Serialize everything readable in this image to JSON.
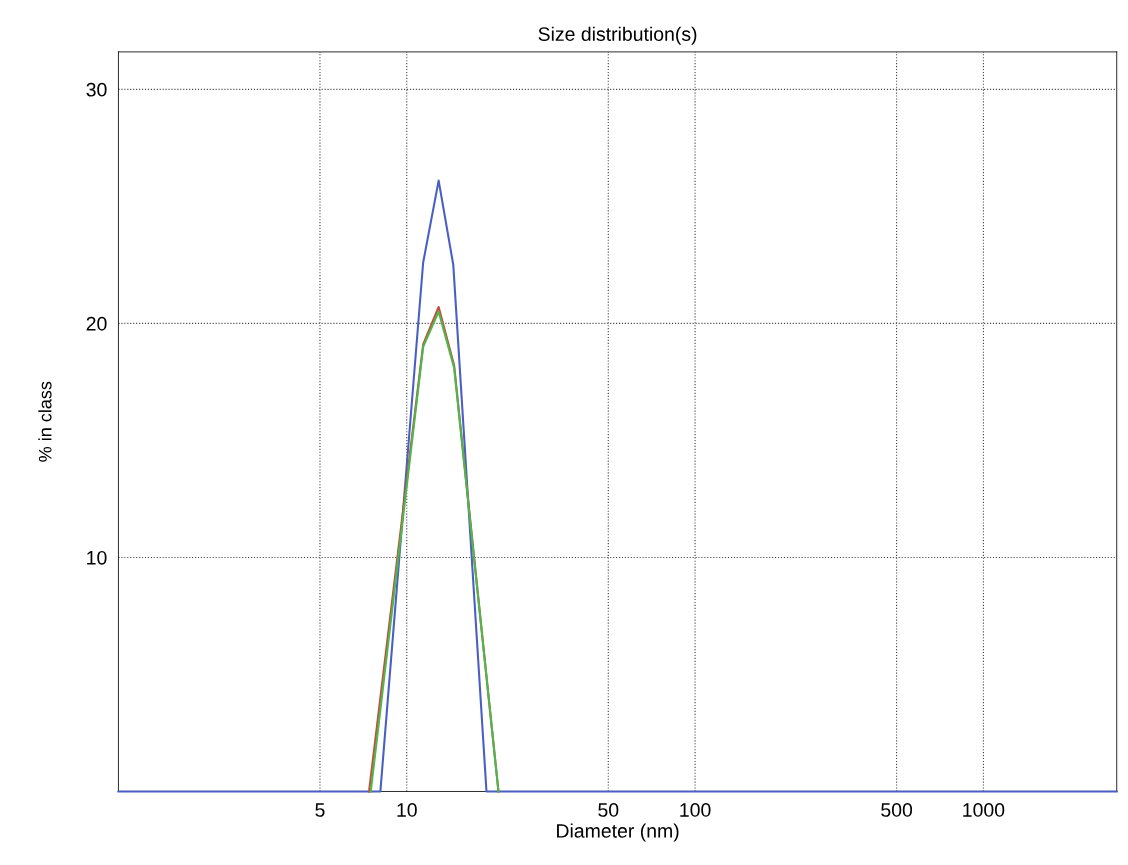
{
  "chart_data": {
    "type": "line",
    "title": "Size distribution(s)",
    "xlabel": "Diameter (nm)",
    "ylabel": "% in class",
    "log": "x",
    "grid": true,
    "line_style": "solid",
    "marker": "none",
    "xlim": [
      1,
      2900
    ],
    "xticks": [
      5,
      10,
      50,
      100,
      500,
      1000
    ],
    "ylim": [
      0,
      31.6
    ],
    "yticks": [
      10,
      20,
      30
    ],
    "series": [
      {
        "color": "#4a5fc4",
        "x": [
          1,
          8.1,
          11.4,
          12.9,
          14.5,
          18.9,
          2900
        ],
        "values": [
          0,
          0,
          22.6,
          26.1,
          22.5,
          0,
          0
        ]
      },
      {
        "color": "#c84a3c",
        "x": [
          7.4,
          11.4,
          12.9,
          14.6,
          20.8
        ],
        "values": [
          0,
          19.1,
          20.7,
          18.2,
          0
        ]
      },
      {
        "color": "#4cb84c",
        "x": [
          7.5,
          11.4,
          12.9,
          14.6,
          20.8
        ],
        "values": [
          0,
          19.0,
          20.5,
          18.1,
          0
        ]
      }
    ]
  }
}
